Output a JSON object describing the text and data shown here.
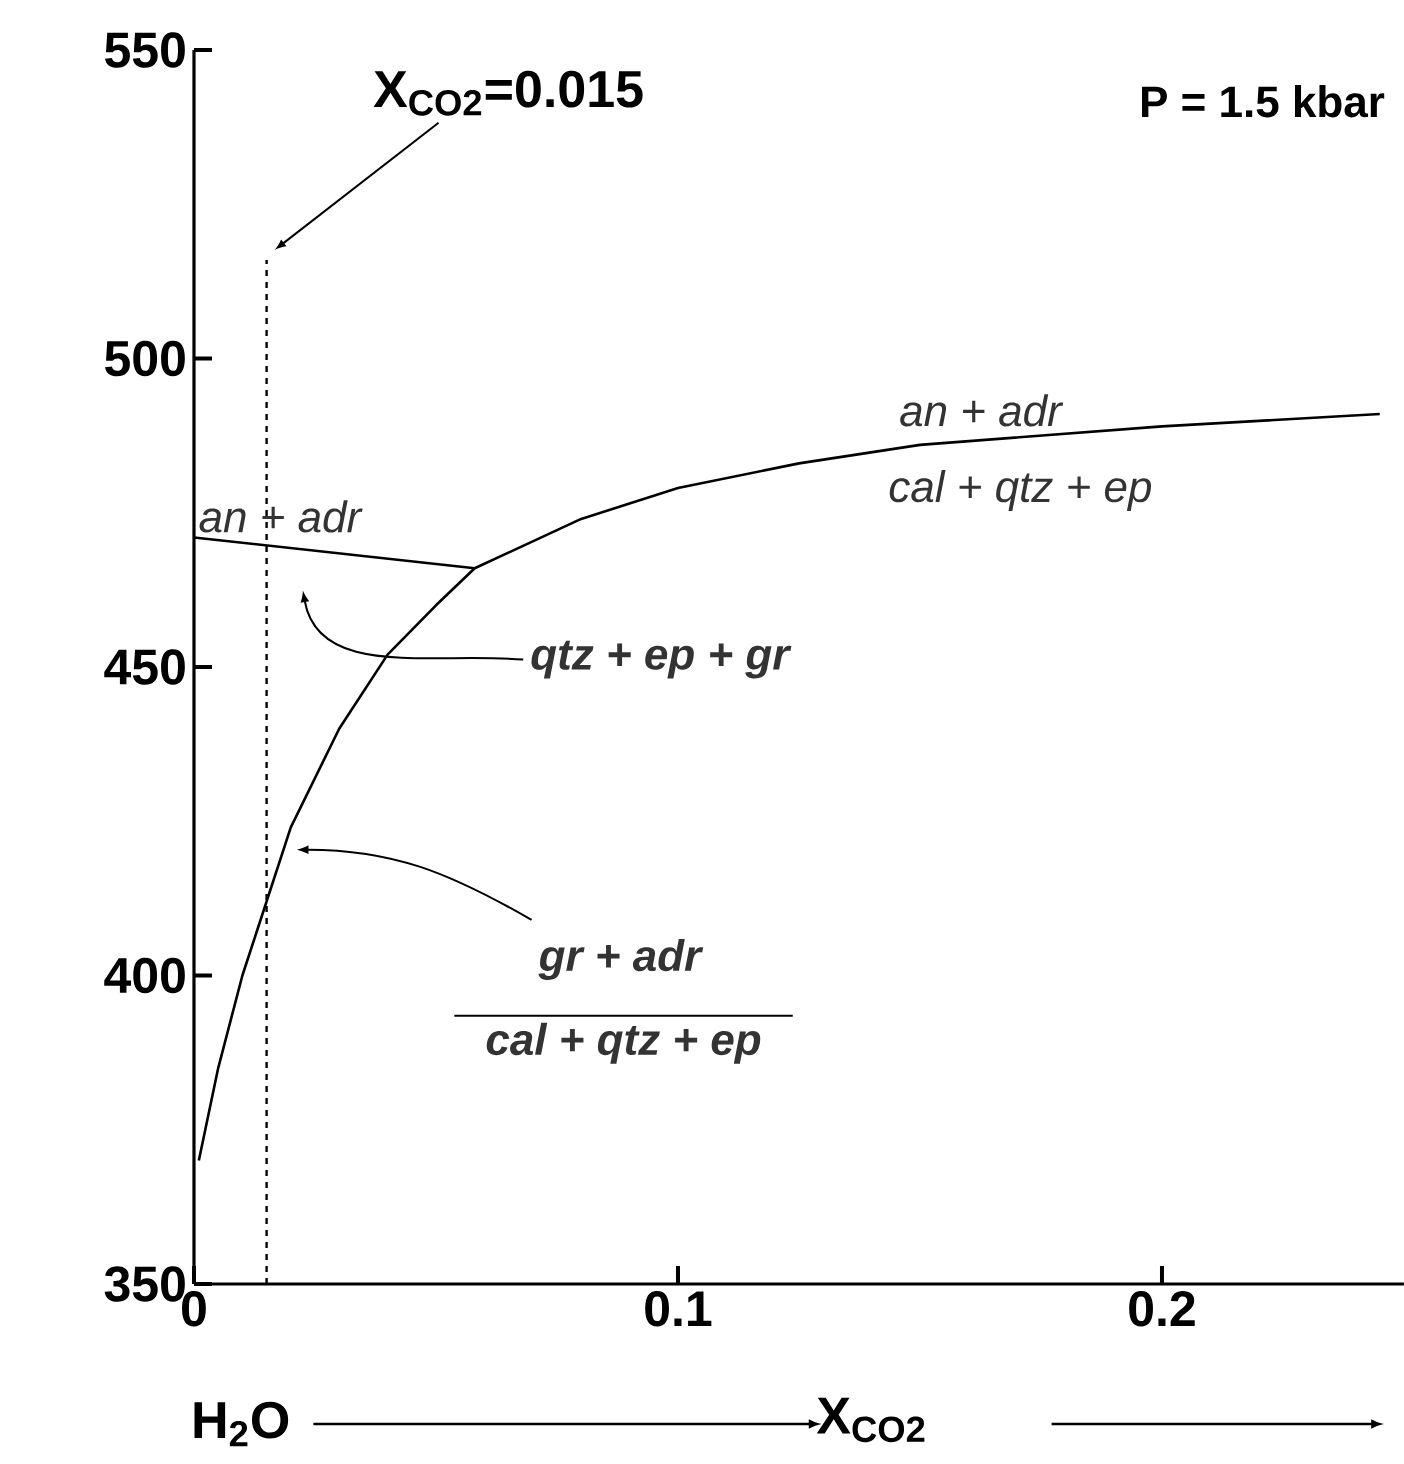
{
  "chart_data": {
    "type": "line",
    "xlabel": "X$_{CO2}$",
    "xlim": [
      0,
      0.25
    ],
    "ylim": [
      350,
      550
    ],
    "xticks": [
      0,
      0.1,
      0.2
    ],
    "yticks": [
      350,
      400,
      450,
      500,
      550
    ],
    "marker": "none",
    "line_style": "solid",
    "series": [
      {
        "color": "#000000",
        "x": [
          0.001,
          0.005,
          0.01,
          0.015,
          0.02,
          0.03,
          0.04,
          0.05,
          0.058,
          0.08,
          0.1,
          0.125,
          0.15,
          0.2,
          0.245
        ],
        "values": [
          370,
          385,
          400,
          412,
          424,
          440,
          452,
          460,
          466,
          474,
          479,
          483,
          486,
          489,
          491
        ]
      },
      {
        "color": "#000000",
        "x": [
          0,
          0.058
        ],
        "values": [
          471,
          466
        ]
      }
    ],
    "ref_lines": [
      {
        "axis": "x",
        "value": 0.015,
        "label": "X$_{CO2}$=0.015",
        "line_style": "dashed",
        "color": "#000000"
      }
    ],
    "annotations": [
      "P = 1.5 kbar",
      "an + adr",
      "cal + qtz + ep",
      "an + adr",
      "qtz + ep + gr",
      "gr + adr",
      "cal + qtz + ep",
      "H$_{2}$O"
    ]
  }
}
